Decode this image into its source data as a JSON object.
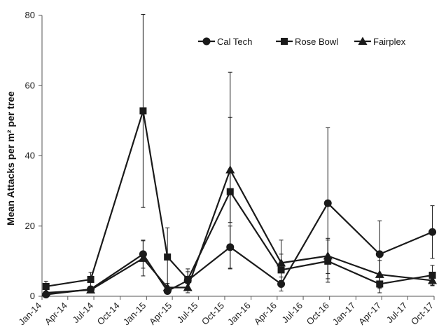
{
  "chart_data": {
    "type": "line",
    "title": "",
    "xlabel": "",
    "ylabel": "Mean Attacks per m² per tree",
    "ylim": [
      0,
      80
    ],
    "yticks": [
      0,
      20,
      40,
      60,
      80
    ],
    "xlim": [
      "2014-01-01",
      "2017-10-01"
    ],
    "xticks": [
      "2014-01-01",
      "2014-04-01",
      "2014-07-01",
      "2014-10-01",
      "2015-01-01",
      "2015-04-01",
      "2015-07-01",
      "2015-10-01",
      "2016-01-01",
      "2016-04-01",
      "2016-07-01",
      "2016-10-01",
      "2017-01-01",
      "2017-04-01",
      "2017-07-01",
      "2017-10-01"
    ],
    "xtick_labels": [
      "Jan-14",
      "Apr-14",
      "Jul-14",
      "Oct-14",
      "Jan-15",
      "Apr-15",
      "Jul-15",
      "Oct-15",
      "Jan-16",
      "Apr-16",
      "Jul-16",
      "Oct-16",
      "Jan-17",
      "Apr-17",
      "Jul-17",
      "Oct-17"
    ],
    "grid": false,
    "legend_position": "top-right",
    "line_color": "#1a1a1a",
    "series": [
      {
        "name": "Cal Tech",
        "marker": "circle",
        "x": [
          "2014-01-15",
          "2014-06-20",
          "2014-12-20",
          "2015-03-15",
          "2015-05-25",
          "2015-10-20",
          "2016-04-15",
          "2016-09-25",
          "2017-03-25",
          "2017-09-25"
        ],
        "y": [
          0.5,
          2,
          12,
          1.5,
          4.5,
          14,
          3.5,
          26.5,
          12,
          18.3
        ],
        "err_upper": [
          0.3,
          0.5,
          4,
          0.8,
          2.5,
          6,
          2,
          21.5,
          9.5,
          7.5
        ],
        "err_lower": [
          0.3,
          0.5,
          4,
          0.8,
          2.5,
          6,
          2,
          21.5,
          9.5,
          7.5
        ]
      },
      {
        "name": "Rose Bowl",
        "marker": "square",
        "x": [
          "2014-01-15",
          "2014-06-20",
          "2014-12-20",
          "2015-03-15",
          "2015-05-25",
          "2015-10-20",
          "2016-04-15",
          "2016-09-25",
          "2017-03-25",
          "2017-09-25"
        ],
        "y": [
          2.8,
          4.8,
          52.8,
          11.2,
          4.8,
          29.8,
          7.5,
          10,
          3.5,
          6
        ],
        "err_upper": [
          1.5,
          2,
          27.5,
          8.3,
          3,
          34,
          4.5,
          6,
          2.5,
          2.8
        ],
        "err_lower": [
          1.5,
          2,
          27.5,
          8.3,
          3,
          22,
          4.5,
          6,
          2.5,
          2.8
        ]
      },
      {
        "name": "Fairplex",
        "marker": "triangle",
        "x": [
          "2014-01-15",
          "2014-06-20",
          "2014-12-20",
          "2015-03-15",
          "2015-05-25",
          "2015-10-20",
          "2016-04-15",
          "2016-09-25",
          "2017-03-25",
          "2017-09-25"
        ],
        "y": [
          1,
          1.8,
          10.8,
          2.5,
          2.5,
          36,
          9.5,
          11.5,
          6.2,
          4.5
        ],
        "err_upper": [
          0.5,
          0.5,
          5,
          1.2,
          1.5,
          15,
          6.5,
          5,
          4,
          1.5
        ],
        "err_lower": [
          0.5,
          0.5,
          5,
          1.2,
          1.5,
          15,
          5,
          5,
          4,
          1.5
        ]
      }
    ]
  }
}
